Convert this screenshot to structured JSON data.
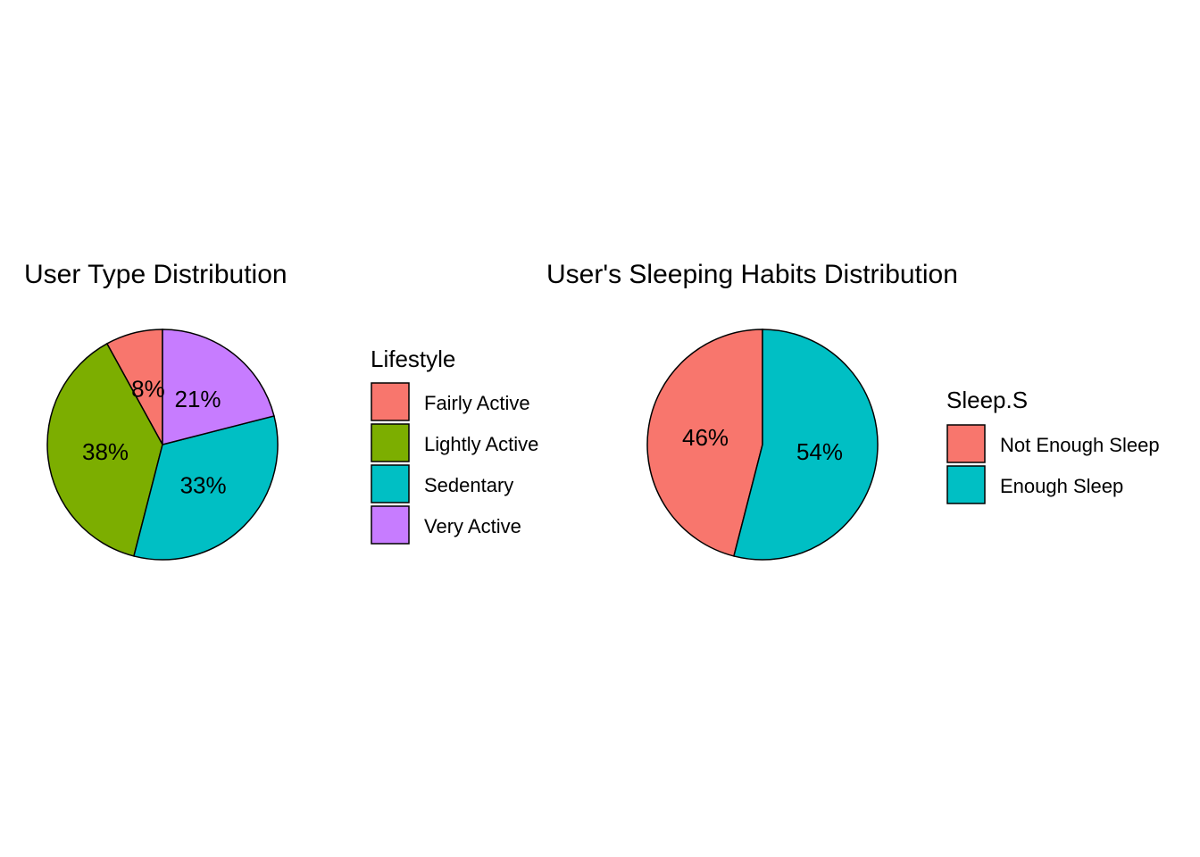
{
  "chart_data": [
    {
      "type": "pie",
      "title": "User Type Distribution",
      "legend_title": "Lifestyle",
      "legend_placement": "right",
      "categories": [
        "Fairly Active",
        "Lightly Active",
        "Sedentary",
        "Very Active"
      ],
      "values": [
        8,
        38,
        33,
        21
      ],
      "labels": [
        "8%",
        "38%",
        "33%",
        "21%"
      ],
      "colors": [
        "#F8766D",
        "#7CAE00",
        "#00BFC4",
        "#C77CFF"
      ]
    },
    {
      "type": "pie",
      "title": "User's Sleeping Habits Distribution",
      "legend_title": "Sleep.S",
      "legend_placement": "right",
      "categories": [
        "Not Enough Sleep",
        "Enough Sleep"
      ],
      "values": [
        46,
        54
      ],
      "labels": [
        "46%",
        "54%"
      ],
      "colors": [
        "#F8766D",
        "#00BFC4"
      ]
    }
  ]
}
